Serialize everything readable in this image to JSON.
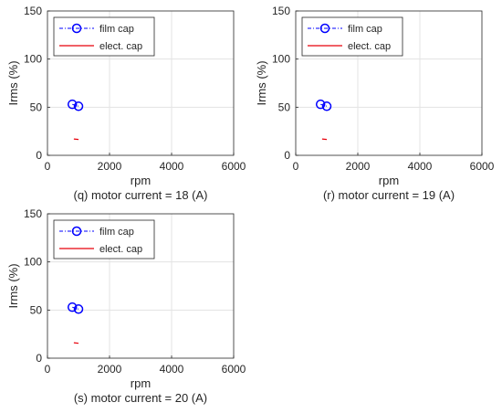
{
  "legend": {
    "film_label": "film cap",
    "elect_label": "elect. cap"
  },
  "colors": {
    "film": "#0000FF",
    "elect": "#E8000B",
    "grid": "#E3E3E3",
    "axis": "#262626"
  },
  "chart_data": [
    {
      "type": "line",
      "caption": "(q) motor current = 18 (A)",
      "xlabel": "rpm",
      "ylabel": "Irms (%)",
      "xlim": [
        0,
        6000
      ],
      "ylim": [
        0,
        150
      ],
      "xticks": [
        0,
        2000,
        4000,
        6000
      ],
      "yticks": [
        0,
        50,
        100,
        150
      ],
      "grid": true,
      "legend_position": "top-left",
      "series": [
        {
          "name": "film cap",
          "style": "dash-dot with circle markers",
          "x": [
            800,
            1000
          ],
          "y": [
            53,
            51
          ]
        },
        {
          "name": "elect. cap",
          "style": "solid",
          "x": [
            850,
            1000
          ],
          "y": [
            17,
            16.5
          ]
        }
      ]
    },
    {
      "type": "line",
      "caption": "(r) motor current = 19 (A)",
      "xlabel": "rpm",
      "ylabel": "Irms (%)",
      "xlim": [
        0,
        6000
      ],
      "ylim": [
        0,
        150
      ],
      "xticks": [
        0,
        2000,
        4000,
        6000
      ],
      "yticks": [
        0,
        50,
        100,
        150
      ],
      "grid": true,
      "legend_position": "top-left",
      "series": [
        {
          "name": "film cap",
          "style": "dash-dot with circle markers",
          "x": [
            800,
            1000
          ],
          "y": [
            53,
            51
          ]
        },
        {
          "name": "elect. cap",
          "style": "solid",
          "x": [
            850,
            1000
          ],
          "y": [
            17,
            16.5
          ]
        }
      ]
    },
    {
      "type": "line",
      "caption": "(s) motor current = 20 (A)",
      "xlabel": "rpm",
      "ylabel": "Irms (%)",
      "xlim": [
        0,
        6000
      ],
      "ylim": [
        0,
        150
      ],
      "xticks": [
        0,
        2000,
        4000,
        6000
      ],
      "yticks": [
        0,
        50,
        100,
        150
      ],
      "grid": true,
      "legend_position": "top-left",
      "series": [
        {
          "name": "film cap",
          "style": "dash-dot with circle markers",
          "x": [
            800,
            1000
          ],
          "y": [
            53,
            51
          ]
        },
        {
          "name": "elect. cap",
          "style": "solid",
          "x": [
            850,
            1000
          ],
          "y": [
            16,
            15.5
          ]
        }
      ]
    }
  ]
}
